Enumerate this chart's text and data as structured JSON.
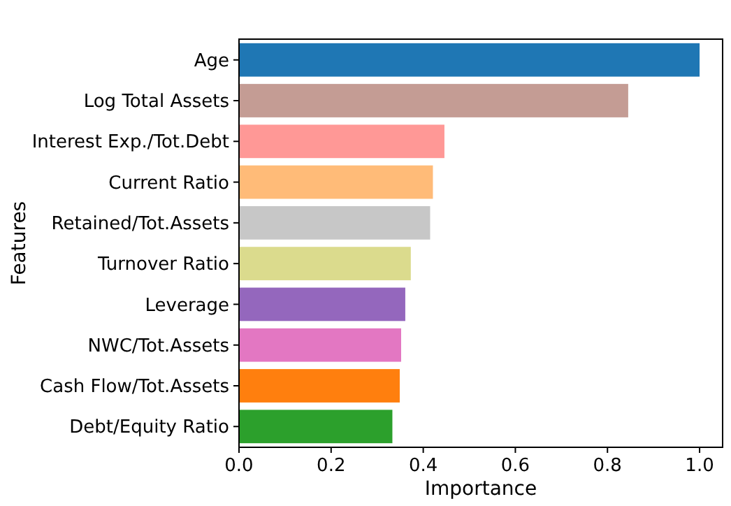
{
  "chart_data": {
    "type": "bar",
    "orientation": "horizontal",
    "xlabel": "Importance",
    "ylabel": "Features",
    "categories": [
      "Age",
      "Log Total Assets",
      "Interest Exp./Tot.Debt",
      "Current Ratio",
      "Retained/Tot.Assets",
      "Turnover Ratio",
      "Leverage",
      "NWC/Tot.Assets",
      "Cash Flow/Tot.Assets",
      "Debt/Equity Ratio"
    ],
    "values": [
      1.0,
      0.845,
      0.446,
      0.421,
      0.415,
      0.373,
      0.361,
      0.352,
      0.349,
      0.333
    ],
    "colors": [
      "#1f77b4",
      "#c49c94",
      "#ff9896",
      "#ffbb78",
      "#c7c7c7",
      "#dbdb8d",
      "#9467bd",
      "#e377c2",
      "#ff7f0e",
      "#2ca02c"
    ],
    "xlim": [
      0,
      1.05
    ],
    "xticks": [
      {
        "value": 0,
        "label": "0.0"
      },
      0.2,
      0.4,
      0.6,
      0.8,
      {
        "value": 1,
        "label": "1.0"
      }
    ]
  }
}
